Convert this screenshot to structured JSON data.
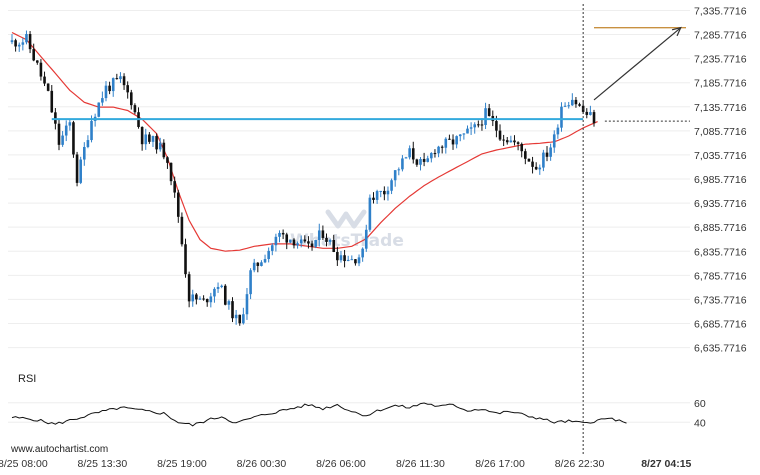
{
  "chart_data": {
    "type": "candlestick",
    "title": "",
    "xlabel": "",
    "ylabel": "",
    "ylim": [
      6610,
      7345
    ],
    "y_ticks": [
      "7,335.7716",
      "7,285.7716",
      "7,235.7716",
      "7,185.7716",
      "7,135.7716",
      "7,085.7716",
      "7,035.7716",
      "6,985.7716",
      "6,935.7716",
      "6,885.7716",
      "6,835.7716",
      "6,785.7716",
      "6,735.7716",
      "6,685.7716",
      "6,635.7716"
    ],
    "x_ticks": [
      "8/25 08:00",
      "8/25 13:30",
      "8/25 19:00",
      "8/26 00:30",
      "8/26 06:00",
      "8/26 11:30",
      "8/26 17:00",
      "8/26 22:30",
      "8/27 04:15"
    ],
    "x_tick_index": [
      3,
      25,
      47,
      69,
      91,
      113,
      135,
      157,
      181
    ],
    "highlight_tick": "8/27 04:15",
    "candle_count": 188,
    "price_keypoints": [
      [
        0,
        7270
      ],
      [
        4,
        7275
      ],
      [
        7,
        7220
      ],
      [
        10,
        7160
      ],
      [
        13,
        7060
      ],
      [
        16,
        7100
      ],
      [
        18,
        6985
      ],
      [
        22,
        7110
      ],
      [
        26,
        7175
      ],
      [
        30,
        7190
      ],
      [
        33,
        7150
      ],
      [
        36,
        7070
      ],
      [
        40,
        7060
      ],
      [
        43,
        7030
      ],
      [
        46,
        6910
      ],
      [
        49,
        6740
      ],
      [
        53,
        6730
      ],
      [
        57,
        6770
      ],
      [
        60,
        6720
      ],
      [
        63,
        6680
      ],
      [
        66,
        6790
      ],
      [
        70,
        6830
      ],
      [
        74,
        6870
      ],
      [
        78,
        6860
      ],
      [
        82,
        6840
      ],
      [
        86,
        6875
      ],
      [
        90,
        6830
      ],
      [
        94,
        6820
      ],
      [
        97,
        6830
      ],
      [
        99,
        6950
      ],
      [
        103,
        6960
      ],
      [
        106,
        7000
      ],
      [
        110,
        7040
      ],
      [
        114,
        7010
      ],
      [
        117,
        7050
      ],
      [
        121,
        7060
      ],
      [
        124,
        7070
      ],
      [
        128,
        7090
      ],
      [
        131,
        7120
      ],
      [
        135,
        7080
      ],
      [
        139,
        7060
      ],
      [
        142,
        7035
      ],
      [
        145,
        7010
      ],
      [
        148,
        7040
      ],
      [
        150,
        7070
      ],
      [
        152,
        7140
      ],
      [
        155,
        7155
      ],
      [
        158,
        7125
      ],
      [
        161,
        7110
      ]
    ],
    "moving_average": [
      [
        0,
        7290
      ],
      [
        4,
        7275
      ],
      [
        8,
        7240
      ],
      [
        12,
        7205
      ],
      [
        16,
        7170
      ],
      [
        20,
        7145
      ],
      [
        24,
        7135
      ],
      [
        28,
        7135
      ],
      [
        32,
        7128
      ],
      [
        36,
        7110
      ],
      [
        40,
        7080
      ],
      [
        43,
        7030
      ],
      [
        46,
        6960
      ],
      [
        49,
        6900
      ],
      [
        52,
        6860
      ],
      [
        55,
        6842
      ],
      [
        59,
        6836
      ],
      [
        63,
        6838
      ],
      [
        67,
        6846
      ],
      [
        72,
        6851
      ],
      [
        77,
        6851
      ],
      [
        82,
        6846
      ],
      [
        86,
        6842
      ],
      [
        90,
        6842
      ],
      [
        94,
        6846
      ],
      [
        98,
        6862
      ],
      [
        102,
        6895
      ],
      [
        106,
        6925
      ],
      [
        110,
        6950
      ],
      [
        114,
        6972
      ],
      [
        118,
        6990
      ],
      [
        122,
        7006
      ],
      [
        126,
        7022
      ],
      [
        130,
        7038
      ],
      [
        134,
        7046
      ],
      [
        138,
        7052
      ],
      [
        142,
        7058
      ],
      [
        146,
        7060
      ],
      [
        150,
        7063
      ],
      [
        154,
        7075
      ],
      [
        158,
        7092
      ],
      [
        162,
        7105
      ]
    ],
    "resistance_level": 7110,
    "resistance_from_index": 11,
    "forecast_line": [
      [
        161,
        7150
      ],
      [
        185,
        7300
      ]
    ],
    "forecast_target": 7300,
    "forecast_target_from_index": 161,
    "dotted_level": 7106,
    "dotted_level_from_index": 164,
    "breakout_index": 158,
    "watermark_text": "WhatsTrade",
    "rsi": {
      "label": "RSI",
      "ylim": [
        30,
        70
      ],
      "y_ticks": [
        "60",
        "40"
      ],
      "y_tick_values": [
        60,
        40
      ],
      "keypoints": [
        [
          0,
          45
        ],
        [
          6,
          43
        ],
        [
          12,
          38
        ],
        [
          18,
          44
        ],
        [
          24,
          50
        ],
        [
          30,
          55
        ],
        [
          36,
          52
        ],
        [
          42,
          49
        ],
        [
          46,
          40
        ],
        [
          50,
          37
        ],
        [
          54,
          42
        ],
        [
          58,
          46
        ],
        [
          62,
          39
        ],
        [
          66,
          44
        ],
        [
          70,
          48
        ],
        [
          76,
          53
        ],
        [
          82,
          58
        ],
        [
          86,
          54
        ],
        [
          90,
          58
        ],
        [
          94,
          51
        ],
        [
          98,
          47
        ],
        [
          102,
          53
        ],
        [
          106,
          57
        ],
        [
          110,
          55
        ],
        [
          114,
          60
        ],
        [
          118,
          56
        ],
        [
          122,
          58
        ],
        [
          126,
          52
        ],
        [
          130,
          54
        ],
        [
          134,
          49
        ],
        [
          138,
          51
        ],
        [
          142,
          47
        ],
        [
          146,
          44
        ],
        [
          150,
          40
        ],
        [
          154,
          41
        ],
        [
          158,
          39
        ],
        [
          162,
          42
        ],
        [
          166,
          44
        ],
        [
          170,
          38
        ]
      ]
    },
    "colors": {
      "bull": "#2f80c9",
      "bear": "#111111",
      "moving_average": "#e53935",
      "resistance": "#33aadd",
      "forecast_target": "#c89040",
      "forecast_arrow": "#333333",
      "rsi": "#111111",
      "vertical_marker": "#333333"
    }
  },
  "footer": {
    "site": "www.autochartist.com"
  }
}
